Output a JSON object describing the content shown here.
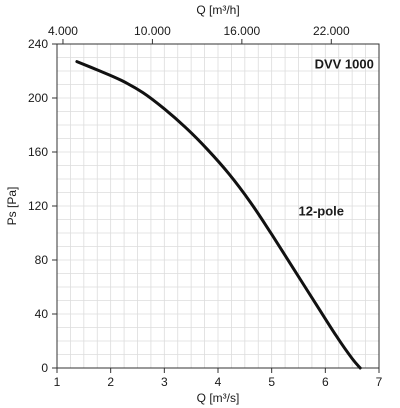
{
  "chart_data": {
    "type": "line",
    "title": "DVV 1000",
    "xlabel": "Q [m³/s]",
    "x2label": "Q [m³/h]",
    "ylabel": "Ps [Pa]",
    "xlim": [
      1,
      7
    ],
    "ylim": [
      0,
      240
    ],
    "x_ticks": [
      1,
      2,
      3,
      4,
      5,
      6,
      7
    ],
    "x_tick_labels": [
      "1",
      "2",
      "3",
      "4",
      "5",
      "6",
      "7"
    ],
    "y_ticks": [
      0,
      40,
      80,
      120,
      160,
      200,
      240
    ],
    "y_tick_labels": [
      "0",
      "40",
      "80",
      "120",
      "160",
      "200",
      "240"
    ],
    "x2_ticks": [
      4000,
      10000,
      16000,
      22000
    ],
    "x2_tick_labels": [
      "4.000",
      "10.000",
      "16.000",
      "22.000"
    ],
    "x2_per_x": 3600,
    "grid": true,
    "series": [
      {
        "name": "12-pole",
        "x": [
          1.37,
          1.8,
          2.2,
          2.6,
          3.0,
          3.4,
          3.8,
          4.2,
          4.6,
          5.0,
          5.4,
          5.8,
          6.2,
          6.5,
          6.65
        ],
        "y": [
          227,
          220,
          213,
          204,
          192,
          178,
          162,
          144,
          123,
          99,
          74,
          49,
          24,
          7,
          0
        ]
      }
    ],
    "annotations": [
      {
        "text": "DVV 1000",
        "x": 5.8,
        "y": 222
      },
      {
        "text": "12-pole",
        "x": 5.5,
        "y": 113
      }
    ]
  }
}
